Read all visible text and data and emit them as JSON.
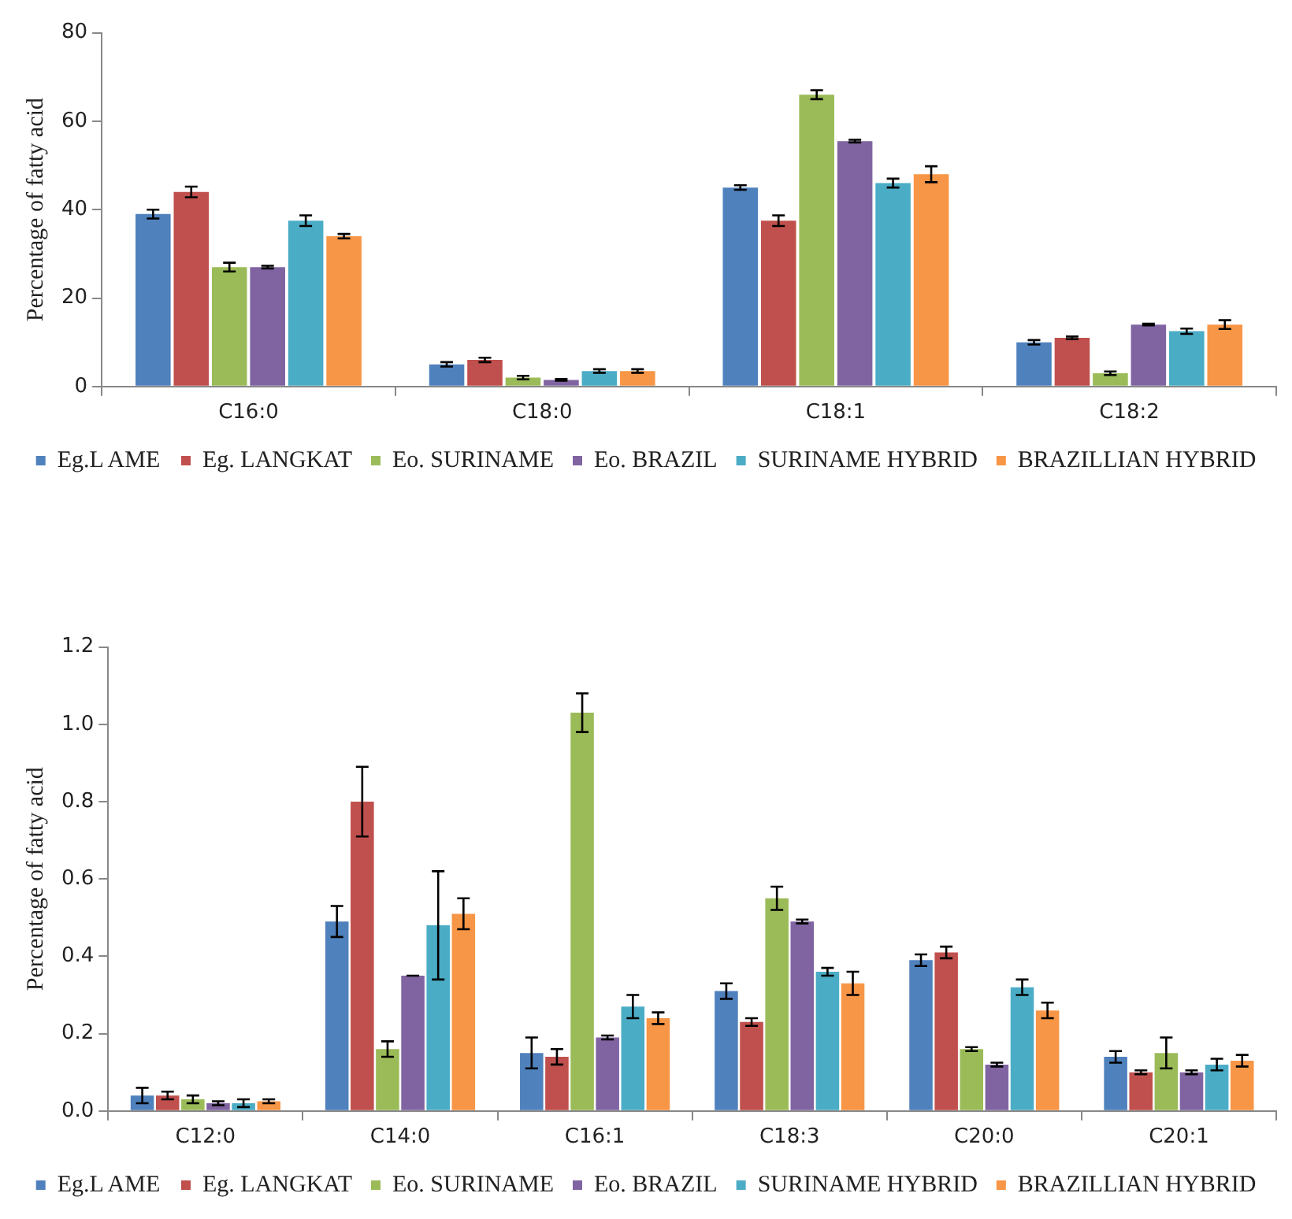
{
  "chart_data": [
    {
      "type": "bar",
      "ylabel": "Percentage of fatty acid",
      "categories": [
        "C16:0",
        "C18:0",
        "C18:1",
        "C18:2"
      ],
      "series": [
        {
          "name": "Eg.L AME",
          "color": "#4f81bd",
          "values": [
            39,
            5,
            45,
            10
          ],
          "errors": [
            1,
            0.5,
            0.5,
            0.5
          ]
        },
        {
          "name": "Eg. LANGKAT",
          "color": "#c0504d",
          "values": [
            44,
            6,
            37.5,
            11
          ],
          "errors": [
            1.2,
            0.5,
            1.2,
            0.3
          ]
        },
        {
          "name": "Eo. SURINAME",
          "color": "#9bbb59",
          "values": [
            27,
            2,
            66,
            3
          ],
          "errors": [
            1,
            0.4,
            1,
            0.4
          ]
        },
        {
          "name": "Eo. BRAZIL",
          "color": "#8064a2",
          "values": [
            27,
            1.5,
            55.5,
            14
          ],
          "errors": [
            0.3,
            0.2,
            0.3,
            0.2
          ]
        },
        {
          "name": "SURINAME HYBRID",
          "color": "#4bacc6",
          "values": [
            37.5,
            3.5,
            46,
            12.5
          ],
          "errors": [
            1.2,
            0.4,
            1,
            0.6
          ]
        },
        {
          "name": "BRAZILLIAN HYBRID",
          "color": "#f79646",
          "values": [
            34,
            3.5,
            48,
            14
          ],
          "errors": [
            0.5,
            0.4,
            1.8,
            1
          ]
        }
      ],
      "ylim": [
        0,
        80
      ],
      "yticks": [
        0,
        20,
        40,
        60,
        80
      ],
      "grid": false,
      "legend": "bottom"
    },
    {
      "type": "bar",
      "ylabel": "Percentage of fatty acid",
      "categories": [
        "C12:0",
        "C14:0",
        "C16:1",
        "C18:3",
        "C20:0",
        "C20:1"
      ],
      "series": [
        {
          "name": "Eg.L AME",
          "color": "#4f81bd",
          "values": [
            0.04,
            0.49,
            0.15,
            0.31,
            0.39,
            0.14
          ],
          "errors": [
            0.02,
            0.04,
            0.04,
            0.02,
            0.015,
            0.015
          ]
        },
        {
          "name": "Eg. LANGKAT",
          "color": "#c0504d",
          "values": [
            0.04,
            0.8,
            0.14,
            0.23,
            0.41,
            0.1
          ],
          "errors": [
            0.01,
            0.09,
            0.02,
            0.01,
            0.015,
            0.005
          ]
        },
        {
          "name": "Eo. SURINAME",
          "color": "#9bbb59",
          "values": [
            0.03,
            0.16,
            1.03,
            0.55,
            0.16,
            0.15
          ],
          "errors": [
            0.01,
            0.02,
            0.05,
            0.03,
            0.005,
            0.04
          ]
        },
        {
          "name": "Eo. BRAZIL",
          "color": "#8064a2",
          "values": [
            0.02,
            0.35,
            0.19,
            0.49,
            0.12,
            0.1
          ],
          "errors": [
            0.005,
            0,
            0.005,
            0.005,
            0.005,
            0.005
          ]
        },
        {
          "name": "SURINAME HYBRID",
          "color": "#4bacc6",
          "values": [
            0.02,
            0.48,
            0.27,
            0.36,
            0.32,
            0.12
          ],
          "errors": [
            0.01,
            0.14,
            0.03,
            0.01,
            0.02,
            0.015
          ]
        },
        {
          "name": "BRAZILLIAN HYBRID",
          "color": "#f79646",
          "values": [
            0.025,
            0.51,
            0.24,
            0.33,
            0.26,
            0.13
          ],
          "errors": [
            0.005,
            0.04,
            0.015,
            0.03,
            0.02,
            0.015
          ]
        }
      ],
      "ylim": [
        0,
        1.2
      ],
      "yticks": [
        {
          "value": 0,
          "label": "0.0"
        },
        {
          "value": 0.2,
          "label": "0.2"
        },
        {
          "value": 0.4,
          "label": "0.4"
        },
        {
          "value": 0.6,
          "label": "0.6"
        },
        {
          "value": 0.8,
          "label": "0.8"
        },
        {
          "value": 1,
          "label": "1.0"
        },
        {
          "value": 1.2,
          "label": "1.2"
        }
      ],
      "grid": false,
      "legend": "bottom"
    }
  ]
}
